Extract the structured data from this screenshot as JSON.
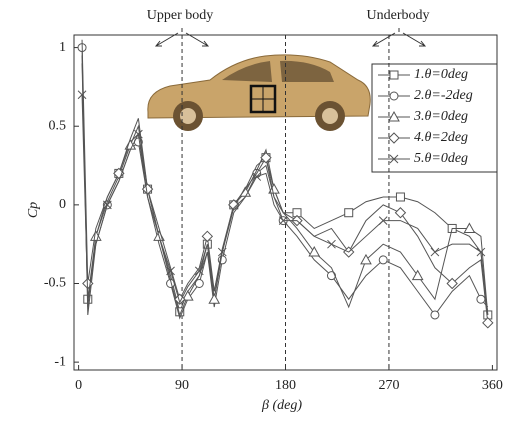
{
  "chart_data": {
    "type": "line",
    "xlabel": "β (deg)",
    "ylabel": "Cp",
    "annotations": [
      "Upper body",
      "Underbody"
    ],
    "x": [
      3,
      8,
      15,
      25,
      35,
      45,
      52,
      60,
      70,
      80,
      88,
      95,
      105,
      112,
      118,
      125,
      135,
      145,
      155,
      163,
      170,
      178,
      190,
      205,
      220,
      235,
      250,
      265,
      280,
      295,
      310,
      325,
      340,
      350,
      356
    ],
    "series": [
      {
        "name": "1.θ=0deg",
        "color": "#555555",
        "marker": "square",
        "values": [
          0.95,
          -0.6,
          -0.2,
          0.05,
          0.2,
          0.4,
          0.45,
          0.1,
          -0.2,
          -0.45,
          -0.68,
          -0.55,
          -0.45,
          -0.25,
          -0.6,
          -0.3,
          0.0,
          0.1,
          0.25,
          0.3,
          0.1,
          -0.05,
          -0.05,
          -0.15,
          -0.1,
          -0.05,
          0.02,
          0.05,
          0.05,
          0.02,
          -0.05,
          -0.15,
          -0.2,
          -0.3,
          -0.7
        ]
      },
      {
        "name": "2.θ=-2deg",
        "color": "#555555",
        "marker": "circle",
        "values": [
          1.0,
          -0.7,
          -0.25,
          0.0,
          0.15,
          0.35,
          0.4,
          0.05,
          -0.25,
          -0.5,
          -0.72,
          -0.6,
          -0.5,
          -0.3,
          -0.65,
          -0.35,
          -0.05,
          0.05,
          0.2,
          0.25,
          0.05,
          -0.1,
          -0.2,
          -0.35,
          -0.45,
          -0.6,
          -0.45,
          -0.35,
          -0.4,
          -0.55,
          -0.7,
          -0.55,
          -0.45,
          -0.6,
          -0.65
        ]
      },
      {
        "name": "3.θ=0deg",
        "color": "#555555",
        "marker": "triangle",
        "values": [
          0.9,
          -0.65,
          -0.2,
          0.02,
          0.18,
          0.38,
          0.5,
          0.1,
          -0.2,
          -0.48,
          -0.7,
          -0.58,
          -0.45,
          -0.3,
          -0.6,
          -0.3,
          0.0,
          0.08,
          0.22,
          0.35,
          0.1,
          -0.05,
          -0.15,
          -0.3,
          -0.4,
          -0.65,
          -0.35,
          -0.25,
          -0.3,
          -0.45,
          -0.6,
          -0.15,
          -0.15,
          -0.2,
          -0.7
        ]
      },
      {
        "name": "4.θ=2deg",
        "color": "#555555",
        "marker": "diamond",
        "values": [
          1.05,
          -0.5,
          -0.15,
          0.05,
          0.2,
          0.42,
          0.55,
          0.1,
          -0.15,
          -0.4,
          -0.6,
          -0.5,
          -0.4,
          -0.2,
          -0.55,
          -0.28,
          0.0,
          0.1,
          0.2,
          0.3,
          0.05,
          -0.05,
          -0.1,
          -0.2,
          -0.15,
          -0.3,
          -0.1,
          0.0,
          -0.05,
          -0.2,
          -0.4,
          -0.5,
          -0.4,
          -0.35,
          -0.75
        ]
      },
      {
        "name": "5.θ=0deg",
        "color": "#555555",
        "marker": "cross",
        "values": [
          0.7,
          -0.6,
          -0.25,
          0.0,
          0.15,
          0.35,
          0.45,
          0.05,
          -0.2,
          -0.42,
          -0.62,
          -0.52,
          -0.42,
          -0.25,
          -0.55,
          -0.3,
          -0.02,
          0.05,
          0.18,
          0.2,
          0.0,
          -0.1,
          -0.1,
          -0.2,
          -0.25,
          -0.3,
          -0.2,
          -0.1,
          -0.1,
          -0.15,
          -0.3,
          -0.25,
          -0.25,
          -0.3,
          -0.7
        ]
      }
    ],
    "xlim": [
      -4,
      364
    ],
    "xticks": [
      0,
      90,
      180,
      270,
      360
    ],
    "ylim": [
      -1.05,
      1.08
    ],
    "yticks": [
      1,
      0.5,
      0,
      -0.5,
      -1
    ],
    "legend": "upper right"
  }
}
